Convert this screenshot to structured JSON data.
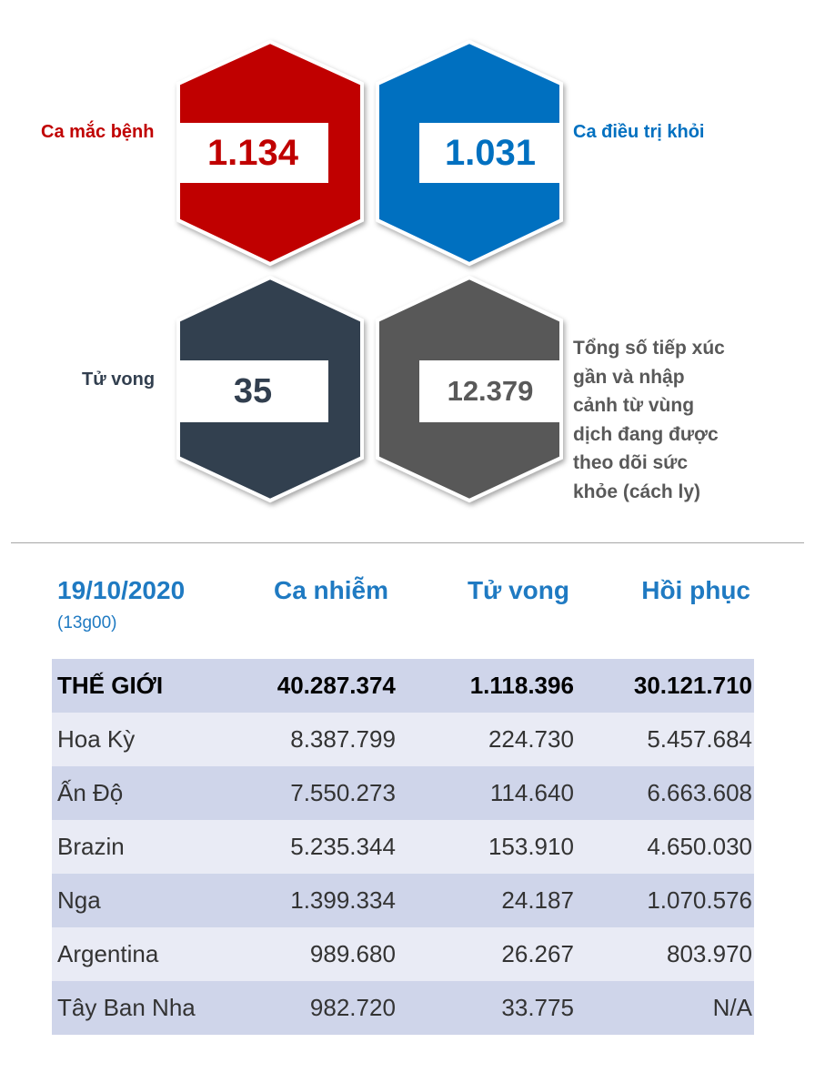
{
  "stats": {
    "cases": {
      "label": "Ca mắc bệnh",
      "value": "1.134",
      "color": "#c00000"
    },
    "recovered": {
      "label": "Ca điều trị khỏi",
      "value": "1.031",
      "color": "#0070c0"
    },
    "deaths": {
      "label": "Tử vong",
      "value": "35",
      "color": "#323f4f"
    },
    "monitored": {
      "label_lines": [
        "Tổng số tiếp xúc",
        "gần và nhập",
        "cảnh từ vùng",
        "dịch đang được",
        "theo dõi sức",
        "khỏe (cách ly)"
      ],
      "value": "12.379",
      "color": "#595959"
    }
  },
  "table": {
    "date": "19/10/2020",
    "time": "(13g00)",
    "headers": [
      "Ca nhiễm",
      "Tử vong",
      "Hồi phục"
    ],
    "rows": [
      {
        "name": "THẾ GIỚI",
        "infected": "40.287.374",
        "deaths": "1.118.396",
        "recovered": "30.121.710"
      },
      {
        "name": "Hoa Kỳ",
        "infected": "8.387.799",
        "deaths": "224.730",
        "recovered": "5.457.684"
      },
      {
        "name": "Ấn Độ",
        "infected": "7.550.273",
        "deaths": "114.640",
        "recovered": "6.663.608"
      },
      {
        "name": "Brazin",
        "infected": "5.235.344",
        "deaths": "153.910",
        "recovered": "4.650.030"
      },
      {
        "name": "Nga",
        "infected": "1.399.334",
        "deaths": "24.187",
        "recovered": "1.070.576"
      },
      {
        "name": "Argentina",
        "infected": "989.680",
        "deaths": "26.267",
        "recovered": "803.970"
      },
      {
        "name": "Tây Ban Nha",
        "infected": "982.720",
        "deaths": "33.775",
        "recovered": "N/A"
      }
    ]
  }
}
